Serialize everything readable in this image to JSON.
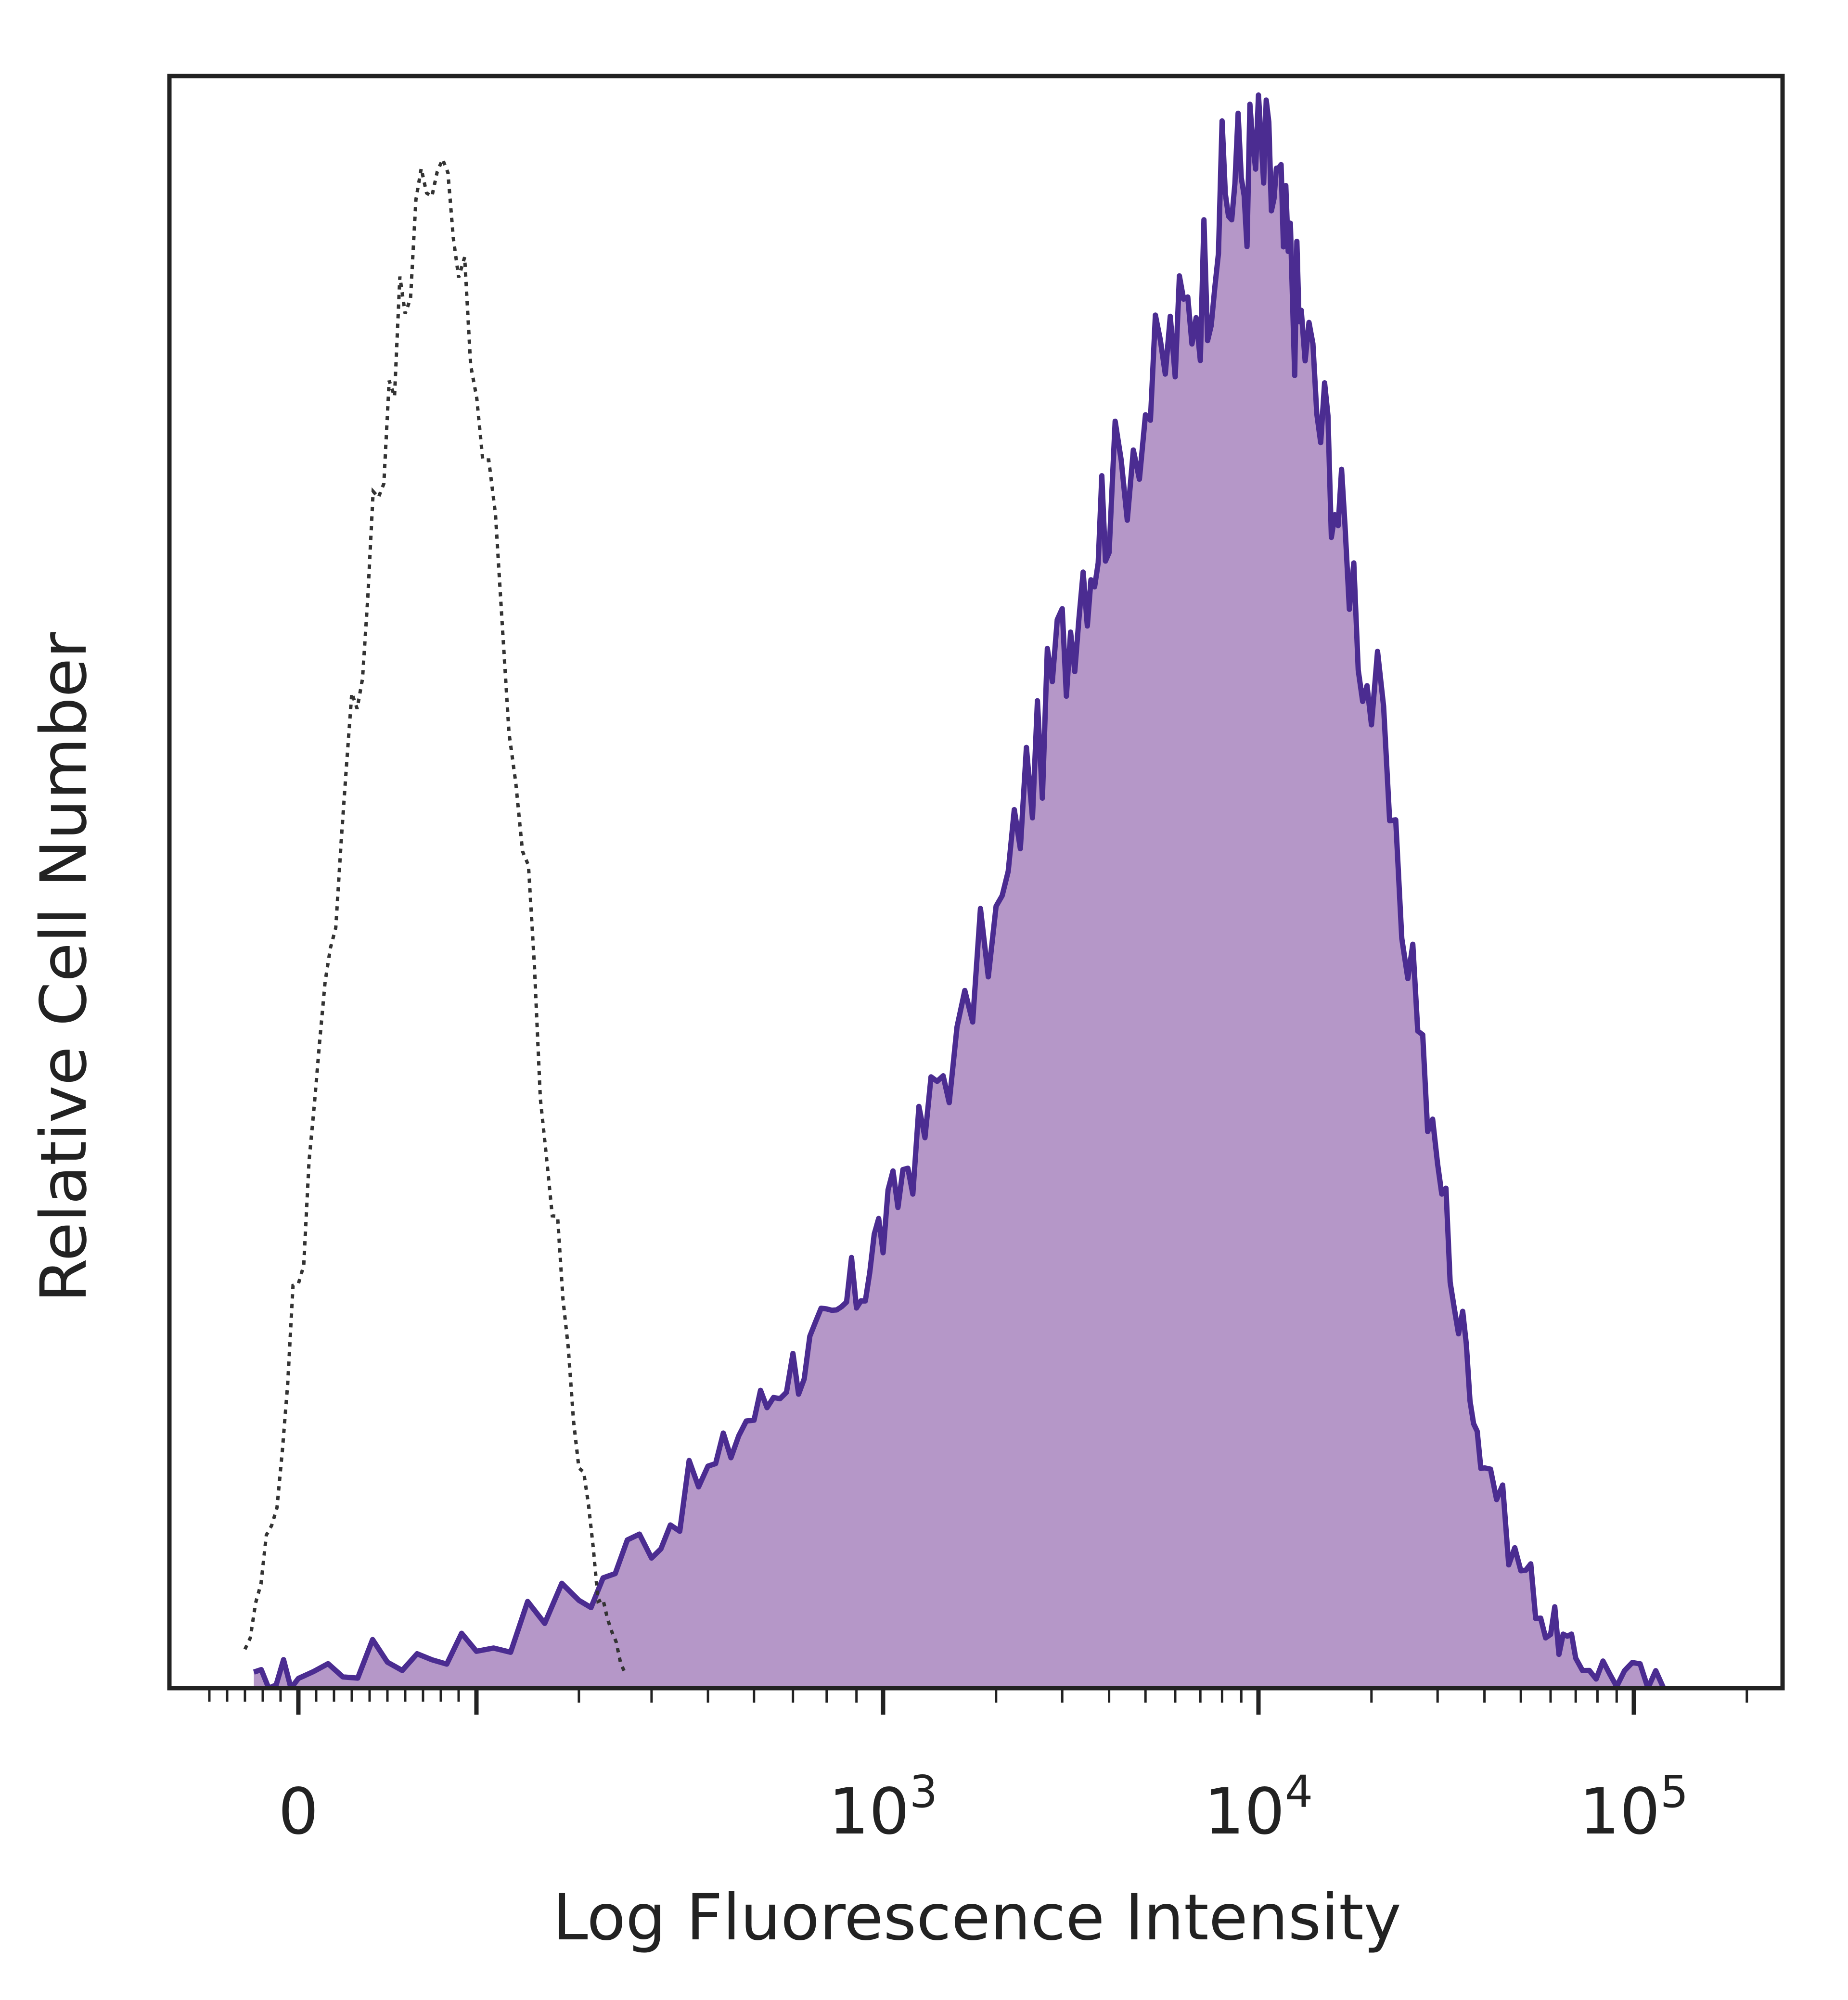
{
  "chart_data": {
    "type": "area",
    "title": "",
    "xlabel": "Log Fluorescence Intensity",
    "ylabel": "Relative Cell Number",
    "x_scale": "biexponential",
    "xlim": [
      -100,
      220000
    ],
    "ylim": [
      0,
      1
    ],
    "grid": false,
    "legend": "none",
    "x_tick_labels": [
      {
        "value": 0,
        "base": "0",
        "exp": ""
      },
      {
        "value": 1000,
        "base": "10",
        "exp": "3"
      },
      {
        "value": 10000,
        "base": "10",
        "exp": "4"
      },
      {
        "value": 100000,
        "base": "10",
        "exp": "5"
      }
    ],
    "series": [
      {
        "style": "dotted",
        "color": "#333333",
        "x": [
          -60,
          -30,
          0,
          30,
          60,
          90,
          120,
          150,
          180,
          210,
          240,
          270,
          300,
          330,
          360
        ],
        "y": [
          0.02,
          0.1,
          0.27,
          0.45,
          0.63,
          0.78,
          0.92,
          1.0,
          0.95,
          0.78,
          0.55,
          0.32,
          0.15,
          0.05,
          0.01
        ]
      },
      {
        "style": "filled",
        "color": "#4b2c91",
        "fill": "#b597c8",
        "x": [
          -50,
          0,
          100,
          200,
          300,
          400,
          500,
          600,
          700,
          800,
          900,
          1000,
          1200,
          1500,
          2000,
          2500,
          3000,
          3500,
          4000,
          5000,
          6000,
          7000,
          8000,
          9000,
          10000,
          11000,
          12000,
          13000,
          15000,
          17000,
          20000,
          25000,
          30000,
          35000,
          40000,
          50000,
          60000,
          70000,
          90000,
          120000
        ],
        "y": [
          0.0,
          0.01,
          0.02,
          0.03,
          0.06,
          0.1,
          0.14,
          0.18,
          0.21,
          0.23,
          0.26,
          0.3,
          0.35,
          0.41,
          0.5,
          0.6,
          0.68,
          0.74,
          0.78,
          0.84,
          0.88,
          0.92,
          0.97,
          0.99,
          1.0,
          0.98,
          0.93,
          0.89,
          0.82,
          0.75,
          0.65,
          0.49,
          0.34,
          0.23,
          0.15,
          0.08,
          0.04,
          0.02,
          0.01,
          0.0
        ]
      }
    ]
  }
}
